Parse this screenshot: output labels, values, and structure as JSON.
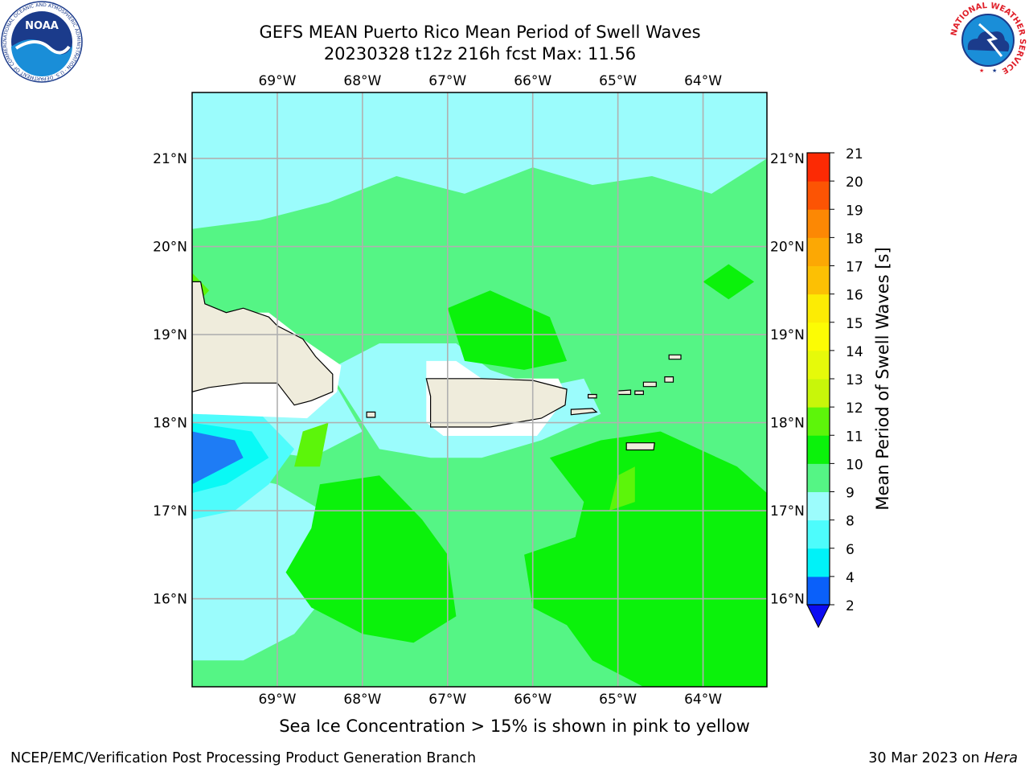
{
  "title": {
    "line1": "GEFS MEAN Puerto Rico Mean Period of Swell Waves",
    "line2": "20230328 t12z 216h fcst   Max: 11.56"
  },
  "map": {
    "lon_range": [
      -70.0,
      -63.25
    ],
    "lat_range": [
      15.0,
      21.75
    ],
    "lon_ticks": [
      {
        "value": -69,
        "label": "69°W"
      },
      {
        "value": -68,
        "label": "68°W"
      },
      {
        "value": -67,
        "label": "67°W"
      },
      {
        "value": -66,
        "label": "66°W"
      },
      {
        "value": -65,
        "label": "65°W"
      },
      {
        "value": -64,
        "label": "64°W"
      }
    ],
    "lat_ticks": [
      {
        "value": 21,
        "label": "21°N"
      },
      {
        "value": 20,
        "label": "20°N"
      },
      {
        "value": 19,
        "label": "19°N"
      },
      {
        "value": 18,
        "label": "18°N"
      },
      {
        "value": 17,
        "label": "17°N"
      },
      {
        "value": 16,
        "label": "16°N"
      }
    ],
    "grid": true,
    "land_color": "#efecdc",
    "background_field_color": "#55f585",
    "regions": [
      {
        "name": "north-band",
        "color": "#9bfcfc",
        "pts": [
          [
            -70,
            21.75
          ],
          [
            -63.25,
            21.75
          ],
          [
            -63.25,
            21.0
          ],
          [
            -63.9,
            20.6
          ],
          [
            -64.6,
            20.8
          ],
          [
            -65.3,
            20.7
          ],
          [
            -66.0,
            20.9
          ],
          [
            -66.8,
            20.6
          ],
          [
            -67.6,
            20.8
          ],
          [
            -68.4,
            20.5
          ],
          [
            -69.2,
            20.3
          ],
          [
            -70,
            20.2
          ]
        ]
      },
      {
        "name": "hispaniola-halo",
        "color": "#9bfcfc",
        "pts": [
          [
            -70,
            19.1
          ],
          [
            -69.0,
            19.0
          ],
          [
            -68.4,
            18.7
          ],
          [
            -68.3,
            18.4
          ],
          [
            -68.0,
            17.9
          ],
          [
            -68.6,
            17.6
          ],
          [
            -69.3,
            17.7
          ],
          [
            -70,
            17.6
          ]
        ]
      },
      {
        "name": "south-west-cyan",
        "color": "#9bfcfc",
        "pts": [
          [
            -70,
            17.5
          ],
          [
            -69.0,
            17.3
          ],
          [
            -68.3,
            16.9
          ],
          [
            -68.3,
            16.2
          ],
          [
            -68.8,
            15.6
          ],
          [
            -69.4,
            15.3
          ],
          [
            -70,
            15.3
          ]
        ]
      },
      {
        "name": "pr-halo",
        "color": "#9bfcfc",
        "pts": [
          [
            -68.4,
            18.6
          ],
          [
            -67.8,
            18.9
          ],
          [
            -66.9,
            18.9
          ],
          [
            -66.5,
            18.6
          ],
          [
            -65.9,
            18.4
          ],
          [
            -65.4,
            18.5
          ],
          [
            -65.2,
            18.1
          ],
          [
            -65.9,
            17.8
          ],
          [
            -66.6,
            17.6
          ],
          [
            -67.2,
            17.6
          ],
          [
            -67.8,
            17.7
          ]
        ]
      },
      {
        "name": "south-west-deep-cyan",
        "color": "#4ffcfc",
        "pts": [
          [
            -70,
            18.2
          ],
          [
            -69.2,
            18.1
          ],
          [
            -68.8,
            17.7
          ],
          [
            -69.1,
            17.3
          ],
          [
            -69.5,
            17.0
          ],
          [
            -70,
            16.9
          ]
        ]
      },
      {
        "name": "south-west-bright-cyan",
        "color": "#09f9f5",
        "pts": [
          [
            -70,
            18.0
          ],
          [
            -69.3,
            17.9
          ],
          [
            -69.1,
            17.6
          ],
          [
            -69.6,
            17.3
          ],
          [
            -70,
            17.2
          ]
        ]
      },
      {
        "name": "south-west-blue",
        "color": "#1e7cf5",
        "pts": [
          [
            -70,
            17.9
          ],
          [
            -69.5,
            17.8
          ],
          [
            -69.4,
            17.6
          ],
          [
            -69.8,
            17.4
          ],
          [
            -70,
            17.3
          ]
        ]
      },
      {
        "name": "south-green-west",
        "color": "#0bf20b",
        "pts": [
          [
            -68.5,
            17.3
          ],
          [
            -67.8,
            17.4
          ],
          [
            -67.3,
            16.9
          ],
          [
            -67.0,
            16.5
          ],
          [
            -66.9,
            15.8
          ],
          [
            -67.4,
            15.5
          ],
          [
            -68.0,
            15.6
          ],
          [
            -68.6,
            15.9
          ],
          [
            -68.9,
            16.3
          ],
          [
            -68.6,
            16.8
          ]
        ]
      },
      {
        "name": "south-green-east",
        "color": "#0bf20b",
        "pts": [
          [
            -65.8,
            17.6
          ],
          [
            -65.2,
            17.8
          ],
          [
            -64.5,
            17.9
          ],
          [
            -63.6,
            17.5
          ],
          [
            -63.25,
            17.2
          ],
          [
            -63.25,
            15.0
          ],
          [
            -64.7,
            15.0
          ],
          [
            -65.3,
            15.3
          ],
          [
            -65.6,
            15.7
          ],
          [
            -66.0,
            15.9
          ],
          [
            -66.1,
            16.5
          ],
          [
            -65.5,
            16.7
          ],
          [
            -65.4,
            17.1
          ]
        ]
      },
      {
        "name": "north-pr-green",
        "color": "#0bf20b",
        "pts": [
          [
            -67.0,
            19.3
          ],
          [
            -66.5,
            19.5
          ],
          [
            -65.8,
            19.2
          ],
          [
            -65.6,
            18.7
          ],
          [
            -66.1,
            18.6
          ],
          [
            -66.8,
            18.7
          ]
        ]
      },
      {
        "name": "east-green-patch",
        "color": "#0bf20b",
        "pts": [
          [
            -64.0,
            19.6
          ],
          [
            -63.7,
            19.8
          ],
          [
            -63.4,
            19.6
          ],
          [
            -63.7,
            19.4
          ]
        ]
      },
      {
        "name": "light-green-1",
        "color": "#5cf50a",
        "pts": [
          [
            -68.7,
            17.9
          ],
          [
            -68.4,
            18.0
          ],
          [
            -68.5,
            17.5
          ],
          [
            -68.8,
            17.5
          ]
        ]
      },
      {
        "name": "light-green-2",
        "color": "#5cf50a",
        "pts": [
          [
            -65.0,
            17.4
          ],
          [
            -64.8,
            17.5
          ],
          [
            -64.8,
            17.1
          ],
          [
            -65.1,
            17.0
          ]
        ]
      },
      {
        "name": "light-green-3",
        "color": "#5cf50a",
        "pts": [
          [
            -70,
            19.7
          ],
          [
            -69.8,
            19.5
          ],
          [
            -70,
            19.3
          ]
        ]
      }
    ],
    "land_masses": [
      {
        "name": "hispaniola",
        "pts": [
          [
            -70,
            19.6
          ],
          [
            -69.9,
            19.6
          ],
          [
            -69.85,
            19.35
          ],
          [
            -69.6,
            19.25
          ],
          [
            -69.4,
            19.3
          ],
          [
            -69.1,
            19.2
          ],
          [
            -69.0,
            19.1
          ],
          [
            -68.7,
            18.95
          ],
          [
            -68.55,
            18.75
          ],
          [
            -68.35,
            18.55
          ],
          [
            -68.35,
            18.35
          ],
          [
            -68.6,
            18.25
          ],
          [
            -68.8,
            18.2
          ],
          [
            -69.0,
            18.45
          ],
          [
            -69.4,
            18.45
          ],
          [
            -69.8,
            18.4
          ],
          [
            -70,
            18.35
          ]
        ]
      },
      {
        "name": "puerto-rico",
        "pts": [
          [
            -67.25,
            18.5
          ],
          [
            -66.6,
            18.5
          ],
          [
            -66.0,
            18.48
          ],
          [
            -65.6,
            18.38
          ],
          [
            -65.62,
            18.2
          ],
          [
            -65.9,
            18.05
          ],
          [
            -66.5,
            17.95
          ],
          [
            -67.2,
            17.95
          ],
          [
            -67.2,
            18.3
          ]
        ]
      },
      {
        "name": "vieques",
        "pts": [
          [
            -65.55,
            18.15
          ],
          [
            -65.3,
            18.16
          ],
          [
            -65.25,
            18.12
          ],
          [
            -65.55,
            18.09
          ]
        ]
      },
      {
        "name": "culebra",
        "pts": [
          [
            -65.35,
            18.32
          ],
          [
            -65.25,
            18.32
          ],
          [
            -65.25,
            18.28
          ],
          [
            -65.35,
            18.28
          ]
        ]
      },
      {
        "name": "st-thomas",
        "pts": [
          [
            -65.0,
            18.36
          ],
          [
            -64.85,
            18.37
          ],
          [
            -64.85,
            18.32
          ],
          [
            -65.0,
            18.32
          ]
        ]
      },
      {
        "name": "st-john",
        "pts": [
          [
            -64.8,
            18.36
          ],
          [
            -64.7,
            18.36
          ],
          [
            -64.7,
            18.32
          ],
          [
            -64.8,
            18.32
          ]
        ]
      },
      {
        "name": "tortola",
        "pts": [
          [
            -64.7,
            18.46
          ],
          [
            -64.55,
            18.46
          ],
          [
            -64.55,
            18.41
          ],
          [
            -64.7,
            18.41
          ]
        ]
      },
      {
        "name": "virgin-gorda",
        "pts": [
          [
            -64.45,
            18.52
          ],
          [
            -64.35,
            18.52
          ],
          [
            -64.35,
            18.46
          ],
          [
            -64.45,
            18.46
          ]
        ]
      },
      {
        "name": "anegada",
        "pts": [
          [
            -64.4,
            18.77
          ],
          [
            -64.26,
            18.77
          ],
          [
            -64.26,
            18.72
          ],
          [
            -64.4,
            18.72
          ]
        ]
      },
      {
        "name": "st-croix",
        "pts": [
          [
            -64.9,
            17.77
          ],
          [
            -64.57,
            17.77
          ],
          [
            -64.58,
            17.69
          ],
          [
            -64.9,
            17.69
          ]
        ]
      },
      {
        "name": "mona",
        "pts": [
          [
            -67.95,
            18.12
          ],
          [
            -67.85,
            18.12
          ],
          [
            -67.85,
            18.06
          ],
          [
            -67.95,
            18.06
          ]
        ]
      }
    ],
    "white_masks": [
      {
        "name": "hispaniola-mask",
        "pts": [
          [
            -70,
            19.25
          ],
          [
            -69.1,
            19.25
          ],
          [
            -68.7,
            18.95
          ],
          [
            -68.25,
            18.65
          ],
          [
            -68.3,
            18.35
          ],
          [
            -68.65,
            18.05
          ],
          [
            -70,
            18.1
          ]
        ]
      },
      {
        "name": "pr-mask",
        "pts": [
          [
            -67.25,
            18.7
          ],
          [
            -66.9,
            18.7
          ],
          [
            -66.6,
            18.5
          ],
          [
            -65.7,
            18.5
          ],
          [
            -65.6,
            18.3
          ],
          [
            -65.95,
            17.85
          ],
          [
            -67.05,
            17.85
          ],
          [
            -67.25,
            18.0
          ]
        ]
      }
    ]
  },
  "colorbar": {
    "label": "Mean Period of Swell Waves [s]",
    "ticks": [
      "2",
      "4",
      "6",
      "8",
      "9",
      "10",
      "11",
      "12",
      "13",
      "14",
      "15",
      "16",
      "17",
      "18",
      "19",
      "20",
      "21"
    ],
    "colors": [
      "#0a60fa",
      "#00f2f8",
      "#4dfcfc",
      "#9cfcfc",
      "#55f585",
      "#0bf20b",
      "#5df50a",
      "#c8f60a",
      "#e6fa0a",
      "#fcfc04",
      "#fcec04",
      "#fcc004",
      "#fca804",
      "#fc8804",
      "#fc5404",
      "#fc2a04"
    ],
    "extend_color": "#0c0cf2"
  },
  "footnote": "Sea Ice Concentration > 15% is shown in pink to yellow",
  "footer_left": "NCEP/EMC/Verification Post Processing Product Generation Branch",
  "footer_right_prefix": "30 Mar 2023 on",
  "footer_right_host": "Hera",
  "logos": {
    "noaa_text": "NOAA",
    "noaa_ring_text": "NATIONAL OCEANIC AND ATMOSPHERIC ADMINISTRATION · U.S. DEPARTMENT OF COMMERCE ·",
    "nws_ring_text": "NATIONAL WEATHER SERVICE"
  }
}
